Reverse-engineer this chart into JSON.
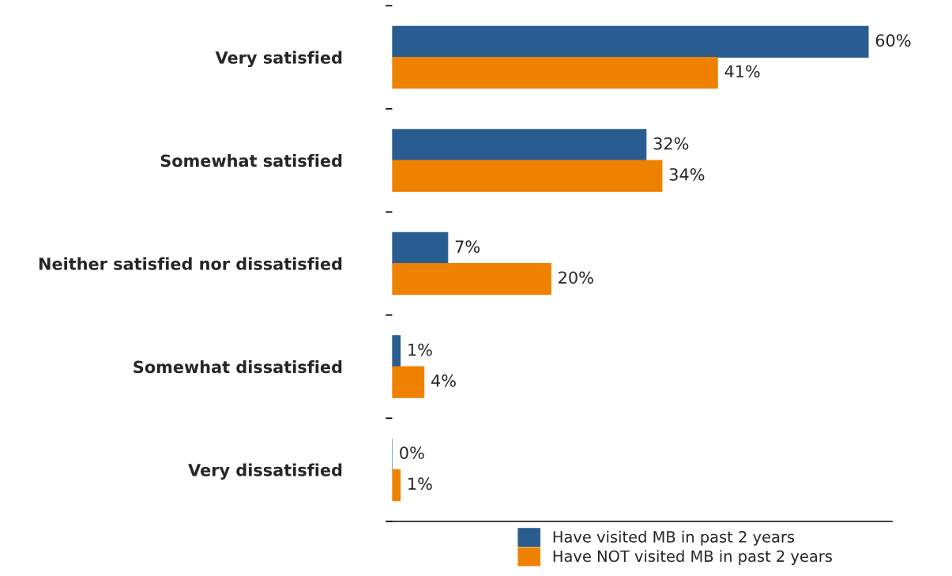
{
  "chart_data": {
    "type": "bar",
    "orientation": "horizontal",
    "categories": [
      "Very satisfied",
      "Somewhat satisfied",
      "Neither satisfied nor dissatisfied",
      "Somewhat dissatisfied",
      "Very dissatisfied"
    ],
    "series": [
      {
        "name": "Have visited MB in past 2 years",
        "color": "#2a5d8f",
        "values": [
          60,
          32,
          7,
          1,
          0
        ],
        "value_labels": [
          "60%",
          "32%",
          "7%",
          "1%",
          "0%"
        ]
      },
      {
        "name": "Have NOT visited MB in past 2 years",
        "color": "#ee8100",
        "values": [
          41,
          34,
          20,
          4,
          1
        ],
        "value_labels": [
          "41%",
          "34%",
          "20%",
          "4%",
          "1%"
        ]
      }
    ],
    "legend": "bottom",
    "grid": false
  }
}
